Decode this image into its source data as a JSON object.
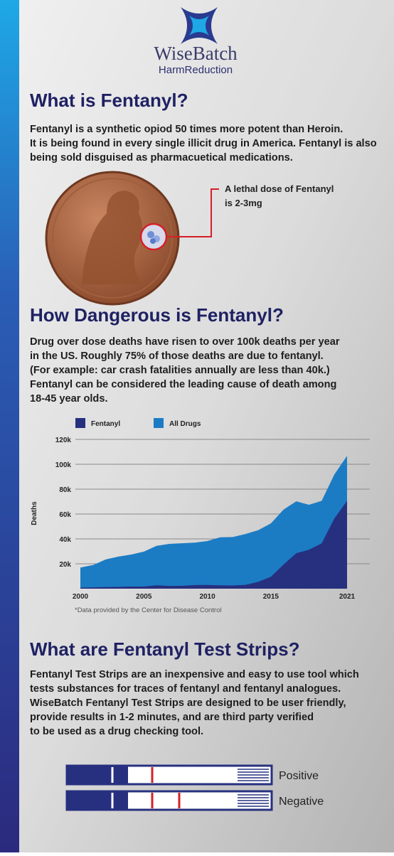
{
  "logo": {
    "name": "WiseBatch",
    "tagline": "HarmReduction"
  },
  "sections": [
    {
      "title": "What is Fentanyl?",
      "lines": [
        "Fentanyl is a synthetic opiod 50 times more potent than Heroin.",
        "It is being found in every single illicit drug in America. Fentanyl is also",
        "being sold disguised as pharmacuetical medications."
      ]
    },
    {
      "title": "How Dangerous is Fentanyl?",
      "lines": [
        "Drug over dose deaths have risen to over 100k deaths per year",
        "in the US. Roughly 75% of those deaths are due to fentanyl.",
        "(For example: car crash fatalities annually are less than 40k.)",
        "Fentanyl can be considered the leading cause of death among",
        "18-45 year olds."
      ]
    },
    {
      "title": "What are Fentanyl Test Strips?",
      "lines": [
        "Fentanyl Test Strips are an inexpensive and easy to use tool which",
        "tests substances for traces of fentanyl and fentanyl analogues.",
        "WiseBatch Fentanyl Test Strips are designed to be user friendly,",
        "provide results in 1-2 minutes, and are third party verified",
        "to be used as a drug checking tool."
      ]
    }
  ],
  "callout": {
    "lines": [
      "A lethal dose of Fentanyl",
      "is 2-3mg"
    ]
  },
  "chart_data": {
    "type": "area",
    "y_label": "Deaths",
    "footnote": "*Data provided by the Center for Disease Control",
    "x": [
      2000,
      2001,
      2002,
      2003,
      2004,
      2005,
      2006,
      2007,
      2008,
      2009,
      2010,
      2011,
      2012,
      2013,
      2014,
      2015,
      2016,
      2017,
      2018,
      2019,
      2020,
      2021
    ],
    "xlim": [
      2000,
      2021
    ],
    "xticks": [
      2000,
      2005,
      2010,
      2015,
      2021
    ],
    "ylim": [
      0,
      120000
    ],
    "yticks": [
      {
        "value": 20000,
        "label": "20k"
      },
      {
        "value": 40000,
        "label": "40k"
      },
      {
        "value": 60000,
        "label": "60k"
      },
      {
        "value": 80000,
        "label": "80k"
      },
      {
        "value": 100000,
        "label": "100k"
      },
      {
        "value": 120000,
        "label": "120k"
      }
    ],
    "grid": true,
    "legend": "top-left",
    "series": [
      {
        "name": "Fentanyl",
        "color": "#27307f",
        "values": [
          800,
          1000,
          1300,
          1400,
          1700,
          1700,
          2700,
          2200,
          2300,
          2900,
          3000,
          2700,
          2600,
          3100,
          5500,
          9600,
          19400,
          28500,
          31300,
          36400,
          56500,
          70600
        ]
      },
      {
        "name": "All Drugs",
        "color": "#1b7cc4",
        "values": [
          17000,
          19000,
          23500,
          25800,
          27400,
          29800,
          34400,
          36000,
          36500,
          37000,
          38300,
          41300,
          41500,
          43900,
          47000,
          52400,
          63600,
          70200,
          67400,
          70600,
          91800,
          106700
        ]
      }
    ]
  },
  "strips": [
    "Positive",
    "Negative"
  ]
}
